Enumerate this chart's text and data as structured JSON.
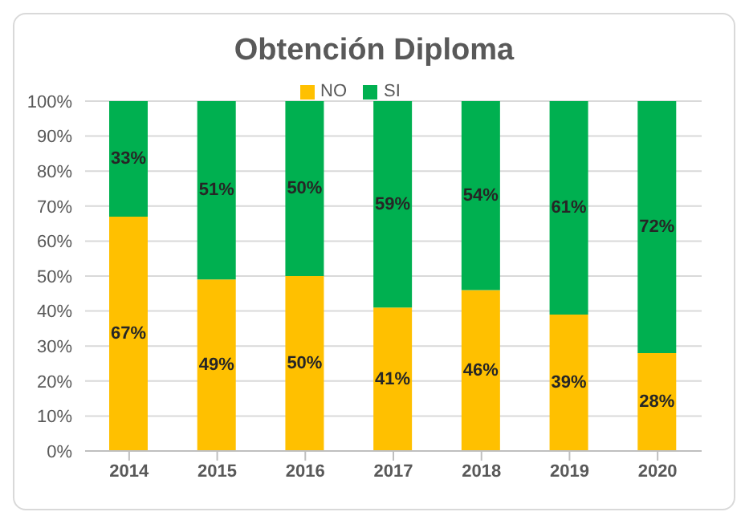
{
  "chart_data": {
    "type": "bar",
    "title": "Obtención Diploma",
    "stacked": true,
    "categories": [
      "2014",
      "2015",
      "2016",
      "2017",
      "2018",
      "2019",
      "2020"
    ],
    "series": [
      {
        "name": "NO",
        "color": "#ffc000",
        "values": [
          67,
          49,
          50,
          41,
          46,
          39,
          28
        ],
        "value_labels": [
          "67%",
          "49%",
          "50%",
          "41%",
          "46%",
          "39%",
          "28%"
        ]
      },
      {
        "name": "SI",
        "color": "#00b050",
        "values": [
          33,
          51,
          50,
          59,
          54,
          61,
          72
        ],
        "value_labels": [
          "33%",
          "51%",
          "50%",
          "59%",
          "54%",
          "61%",
          "72%"
        ]
      }
    ],
    "ylim": [
      0,
      100
    ],
    "yticks": [
      {
        "value": 0,
        "label": "0%"
      },
      {
        "value": 10,
        "label": "10%"
      },
      {
        "value": 20,
        "label": "20%"
      },
      {
        "value": 30,
        "label": "30%"
      },
      {
        "value": 40,
        "label": "40%"
      },
      {
        "value": 50,
        "label": "50%"
      },
      {
        "value": 60,
        "label": "60%"
      },
      {
        "value": 70,
        "label": "70%"
      },
      {
        "value": 80,
        "label": "80%"
      },
      {
        "value": 90,
        "label": "90%"
      },
      {
        "value": 100,
        "label": "100%"
      }
    ],
    "grid": "y",
    "legend": "top"
  }
}
